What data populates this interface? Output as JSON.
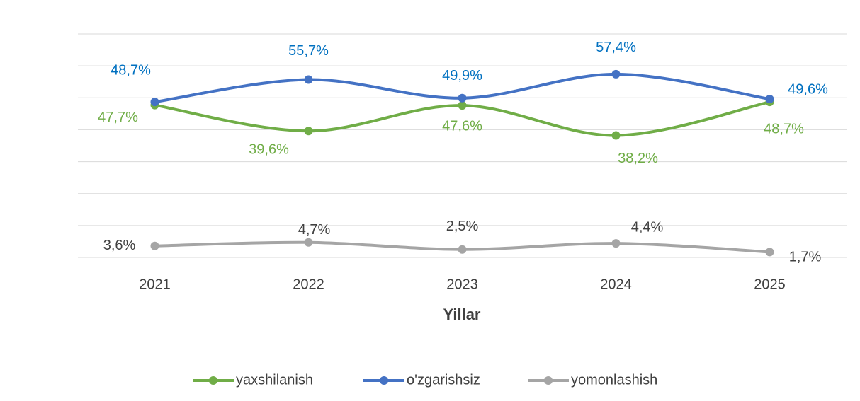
{
  "chart_data": {
    "type": "line",
    "x_label": "Yillar",
    "categories": [
      "2021",
      "2022",
      "2023",
      "2024",
      "2025"
    ],
    "series": [
      {
        "name": "yaxshilanish",
        "color": "#70ad47",
        "values": [
          47.7,
          39.6,
          47.6,
          38.2,
          48.7
        ],
        "value_labels": [
          "47,7%",
          "39,6%",
          "47,6%",
          "38,2%",
          "48,7%"
        ]
      },
      {
        "name": "o'zgarishsiz",
        "color": "#4472c4",
        "values": [
          48.7,
          55.7,
          49.9,
          57.4,
          49.6
        ],
        "value_labels": [
          "48,7%",
          "55,7%",
          "49,9%",
          "57,4%",
          "49,6%"
        ]
      },
      {
        "name": "yomonlashish",
        "color": "#a5a5a5",
        "values": [
          3.6,
          4.7,
          2.5,
          4.4,
          1.7
        ],
        "value_labels": [
          "3,6%",
          "4,7%",
          "2,5%",
          "4,4%",
          "1,7%"
        ]
      }
    ],
    "ylim": [
      0,
      70
    ],
    "yticks": [
      0,
      10,
      20,
      30,
      40,
      50,
      60,
      70
    ],
    "grid": true,
    "legend": "bottom"
  }
}
